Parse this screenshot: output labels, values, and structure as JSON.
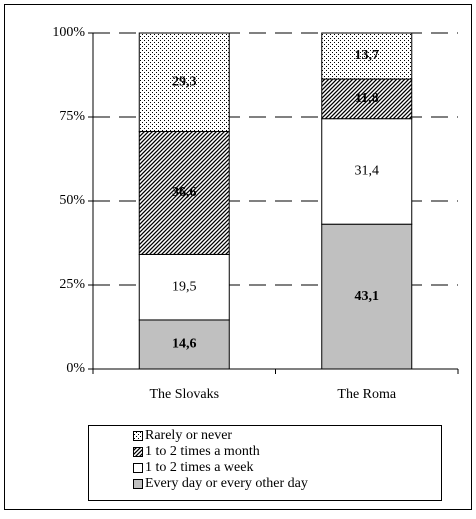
{
  "chart_data": {
    "type": "stacked_bar",
    "categories": [
      "The Slovaks",
      "The Roma"
    ],
    "series": [
      {
        "name": "Every day or every other day",
        "color": "#c0c0c0",
        "values": [
          14.6,
          43.1
        ],
        "value_labels": [
          "14,6",
          "43,1"
        ]
      },
      {
        "name": "1 to 2 times a week",
        "color": "#ffffff",
        "values": [
          19.5,
          31.4
        ],
        "value_labels": [
          "19,5",
          "31,4"
        ]
      },
      {
        "name": "1 to 2 times a month",
        "color": "#000000",
        "pattern": "diagonal",
        "values": [
          36.6,
          11.8
        ],
        "value_labels": [
          "36,6",
          "11,8"
        ]
      },
      {
        "name": "Rarely or never",
        "color": "#000000",
        "pattern": "dots",
        "values": [
          29.3,
          13.7
        ],
        "value_labels": [
          "29,3",
          "13,7"
        ]
      }
    ],
    "ylim": [
      0,
      100
    ],
    "yticks": [
      {
        "value": 0,
        "label": "0%"
      },
      {
        "value": 25,
        "label": "25%"
      },
      {
        "value": 50,
        "label": "50%"
      },
      {
        "value": 75,
        "label": "75%"
      },
      {
        "value": 100,
        "label": "100%"
      }
    ],
    "grid": true
  }
}
